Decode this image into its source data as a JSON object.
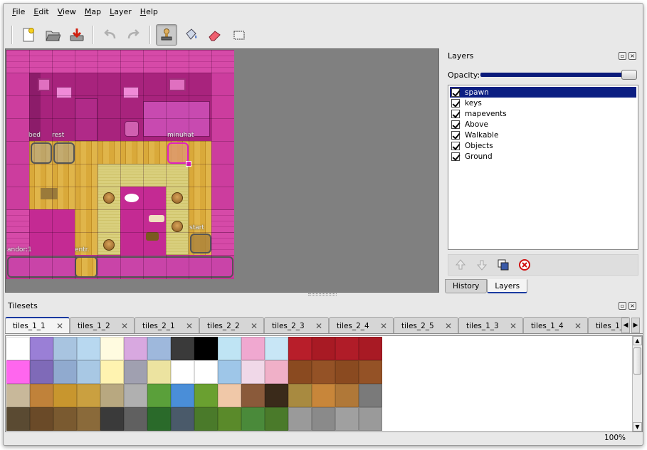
{
  "menubar": {
    "items": [
      "File",
      "Edit",
      "View",
      "Map",
      "Layer",
      "Help"
    ]
  },
  "toolbar": {
    "buttons": [
      {
        "name": "new-map",
        "icon": "new-document-icon"
      },
      {
        "name": "open-map",
        "icon": "folder-open-icon"
      },
      {
        "name": "save-map",
        "icon": "save-icon"
      },
      {
        "name": "undo",
        "icon": "undo-icon"
      },
      {
        "name": "redo",
        "icon": "redo-icon"
      },
      {
        "name": "stamp-brush",
        "icon": "stamp-icon",
        "active": true
      },
      {
        "name": "bucket-fill",
        "icon": "bucket-icon"
      },
      {
        "name": "eraser",
        "icon": "eraser-icon"
      },
      {
        "name": "rect-select",
        "icon": "rectangle-select-icon"
      }
    ]
  },
  "map": {
    "object_labels": [
      "bed",
      "rest",
      "minuhat",
      "start",
      "andor:1",
      "entr."
    ]
  },
  "layers_panel": {
    "title": "Layers",
    "opacity_label": "Opacity:",
    "opacity_value": 1.0,
    "layers": [
      {
        "name": "spawn",
        "visible": true,
        "selected": true
      },
      {
        "name": "keys",
        "visible": true
      },
      {
        "name": "mapevents",
        "visible": true
      },
      {
        "name": "Above",
        "visible": true
      },
      {
        "name": "Walkable",
        "visible": true
      },
      {
        "name": "Objects",
        "visible": true
      },
      {
        "name": "Ground",
        "visible": true
      }
    ],
    "tabs": [
      "History",
      "Layers"
    ],
    "active_tab": "Layers"
  },
  "tilesets_panel": {
    "title": "Tilesets",
    "tabs": [
      "tiles_1_1",
      "tiles_1_2",
      "tiles_2_1",
      "tiles_2_2",
      "tiles_2_3",
      "tiles_2_4",
      "tiles_2_5",
      "tiles_1_3",
      "tiles_1_4",
      "tiles_1_"
    ],
    "active_tab": "tiles_1_1",
    "tile_colors": [
      [
        "#ffffff",
        "#9a7fd6",
        "#a8c4e0",
        "#b8d8f0",
        "#fffbe0",
        "#d8a8e0",
        "#9eb8dc",
        "#3a3a3a",
        "#000000",
        "#bfe4f4",
        "#f0a8d0",
        "#c8e6f6",
        "#b81e2a",
        "#a81a24",
        "#b01c28",
        "#a81a24"
      ],
      [
        "#ff66ee",
        "#7f6ab8",
        "#90aacf",
        "#a8c8e4",
        "#fff3b0",
        "#a0a0b0",
        "#ece3a0",
        "#ffffff",
        "#ffffff",
        "#9ec6e8",
        "#f0d8e8",
        "#f0b0c8",
        "#8a4a20",
        "#945226",
        "#8a4a20",
        "#945226"
      ],
      [
        "#c8b89a",
        "#c0823a",
        "#c8962e",
        "#caa040",
        "#b8a880",
        "#b0b0b0",
        "#5aa03a",
        "#4a8ed8",
        "#6aa030",
        "#f0c8a8",
        "#8a5a3a",
        "#3a2a1a",
        "#a88a40",
        "#c8863a",
        "#b07838",
        "#7a7a7a"
      ],
      [
        "#5a4a32",
        "#6a4a28",
        "#7a5a30",
        "#8a6a3a",
        "#3a3a3a",
        "#606060",
        "#2a6a2a",
        "#4a5a6a",
        "#4a7a2a",
        "#5a8a2a",
        "#4a8a3a",
        "#4a7a2a",
        "#9a9a9a",
        "#8a8a8a",
        "#a0a0a0",
        "#9a9a9a"
      ]
    ]
  },
  "status": {
    "zoom": "100%"
  }
}
